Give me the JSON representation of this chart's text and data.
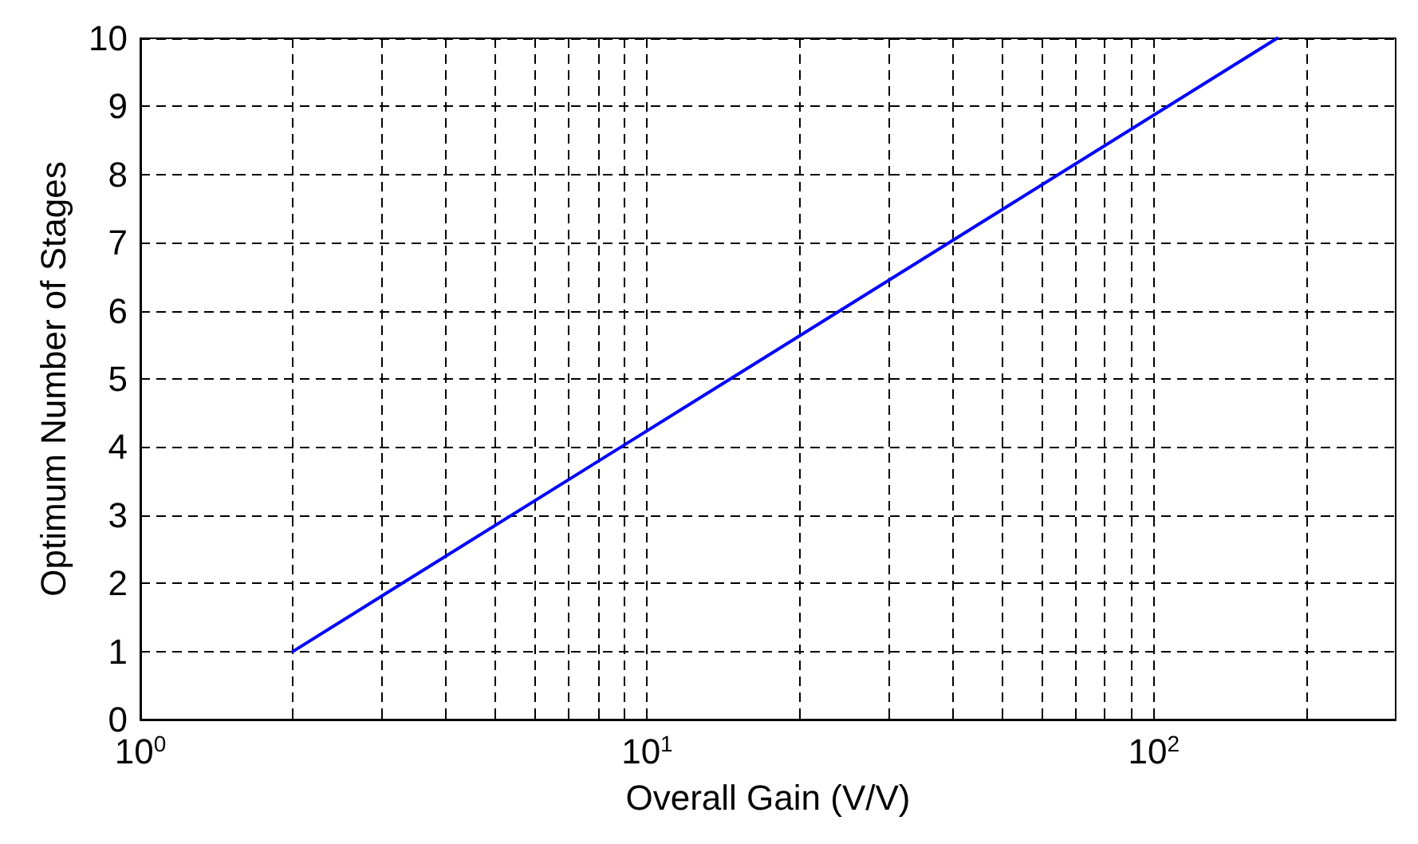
{
  "chart_data": {
    "type": "line",
    "xlabel": "Overall Gain (V/V)",
    "ylabel": "Optimum Number of Stages",
    "log": "x",
    "x": [
      2,
      175
    ],
    "series": [
      {
        "color": "#0000ff",
        "values": [
          1,
          10
        ]
      }
    ],
    "xlim": [
      1,
      300
    ],
    "xticks": [
      {
        "value": 1,
        "label": "10$^{0}$"
      },
      {
        "value": 2,
        "label": null
      },
      {
        "value": 3,
        "label": null
      },
      {
        "value": 4,
        "label": null
      },
      {
        "value": 5,
        "label": null
      },
      {
        "value": 6,
        "label": null
      },
      {
        "value": 7,
        "label": null
      },
      {
        "value": 8,
        "label": null
      },
      {
        "value": 9,
        "label": null
      },
      {
        "value": 10,
        "label": "10$^{1}$"
      },
      {
        "value": 20,
        "label": null
      },
      {
        "value": 30,
        "label": null
      },
      {
        "value": 40,
        "label": null
      },
      {
        "value": 50,
        "label": null
      },
      {
        "value": 60,
        "label": null
      },
      {
        "value": 70,
        "label": null
      },
      {
        "value": 80,
        "label": null
      },
      {
        "value": 90,
        "label": null
      },
      {
        "value": 100,
        "label": "10$^{2}$"
      },
      {
        "value": 200,
        "label": null
      }
    ],
    "ylim": [
      0,
      10
    ],
    "yticks": [
      0,
      1,
      2,
      3,
      4,
      5,
      6,
      7,
      8,
      9,
      10
    ],
    "grid": true,
    "line_style": "solid",
    "marker": "none"
  }
}
